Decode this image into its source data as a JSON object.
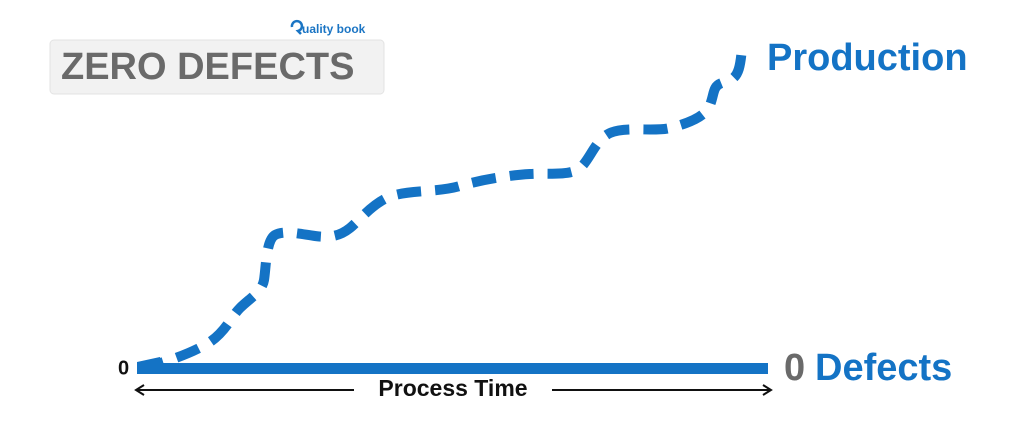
{
  "brand": {
    "name": "uality book"
  },
  "title": "ZERO DEFECTS",
  "curve": {
    "label": "Production"
  },
  "baseline": {
    "count": "0",
    "label": "Defects"
  },
  "axis": {
    "origin": "0",
    "label": "Process Time"
  }
}
